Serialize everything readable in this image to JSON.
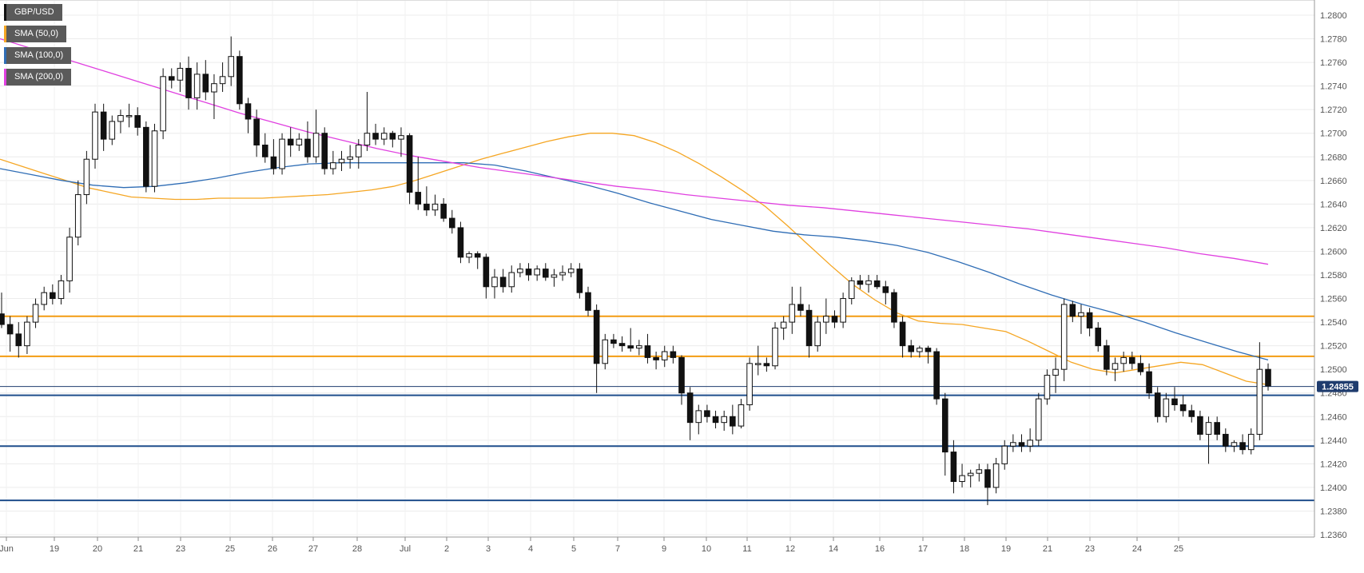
{
  "legend": [
    {
      "label": "GBP/USD",
      "color": "#111111"
    },
    {
      "label": "SMA (50,0)",
      "color": "#f5a623"
    },
    {
      "label": "SMA (100,0)",
      "color": "#2f6db5"
    },
    {
      "label": "SMA (200,0)",
      "color": "#e040e0"
    }
  ],
  "price_badge": "1.24855",
  "chart_data": {
    "type": "candlestick",
    "symbol": "GBP/USD",
    "ylim": [
      1.2355,
      1.2805
    ],
    "y_ticks": [
      "1.2800",
      "1.2780",
      "1.2760",
      "1.2740",
      "1.2720",
      "1.2700",
      "1.2680",
      "1.2660",
      "1.2640",
      "1.2620",
      "1.2600",
      "1.2580",
      "1.2560",
      "1.2540",
      "1.2520",
      "1.2500",
      "1.2480",
      "1.2460",
      "1.2440",
      "1.2420",
      "1.2400",
      "1.2380",
      "1.2360"
    ],
    "x_ticks": [
      "Jun",
      "19",
      "20",
      "21",
      "23",
      "25",
      "26",
      "27",
      "28",
      "Jul",
      "2",
      "3",
      "4",
      "5",
      "7",
      "9",
      "10",
      "11",
      "12",
      "14",
      "16",
      "17",
      "18",
      "19",
      "21",
      "23",
      "24",
      "25"
    ],
    "grid": true,
    "colors": {
      "up": "#ffffff",
      "down": "#111111",
      "sma50": "#f5a623",
      "sma100": "#2f6db5",
      "sma200": "#e040e0",
      "resistance": "#f39c12",
      "support": "#1f4e8c",
      "price_line": "#1f3c6e"
    },
    "horizontal_levels": {
      "resistance": [
        1.2545,
        1.2511
      ],
      "support": [
        1.2478,
        1.2435,
        1.2389
      ]
    },
    "last_price": 1.24855,
    "sma50": [
      1.2678,
      1.2672,
      1.2666,
      1.266,
      1.2654,
      1.265,
      1.2646,
      1.2645,
      1.2644,
      1.2644,
      1.2645,
      1.2645,
      1.2645,
      1.2646,
      1.2647,
      1.2648,
      1.265,
      1.2652,
      1.2655,
      1.266,
      1.2666,
      1.2672,
      1.2678,
      1.2683,
      1.2688,
      1.2693,
      1.2697,
      1.27,
      1.27,
      1.2698,
      1.2692,
      1.2684,
      1.2674,
      1.2663,
      1.2651,
      1.2638,
      1.2622,
      1.2605,
      1.2588,
      1.2572,
      1.2559,
      1.2548,
      1.2541,
      1.2539,
      1.2538,
      1.2535,
      1.2532,
      1.2524,
      1.2515,
      1.2506,
      1.25,
      1.2497,
      1.25,
      1.2503,
      1.2506,
      1.2504,
      1.2497,
      1.249,
      1.2487
    ],
    "sma100": [
      1.267,
      1.2665,
      1.266,
      1.2656,
      1.2654,
      1.2655,
      1.2658,
      1.2662,
      1.2667,
      1.2671,
      1.2674,
      1.2675,
      1.2675,
      1.2675,
      1.2675,
      1.2675,
      1.2673,
      1.2668,
      1.2662,
      1.2656,
      1.2649,
      1.2641,
      1.2634,
      1.2627,
      1.2622,
      1.2617,
      1.2614,
      1.2612,
      1.2609,
      1.2605,
      1.2599,
      1.2591,
      1.2582,
      1.2572,
      1.2563,
      1.2555,
      1.2548,
      1.254,
      1.2531,
      1.2523,
      1.2515,
      1.2508
    ],
    "sma200": [
      1.278,
      1.2771,
      1.2762,
      1.2753,
      1.2744,
      1.2735,
      1.2726,
      1.2717,
      1.2709,
      1.2701,
      1.2694,
      1.2687,
      1.2681,
      1.2676,
      1.2671,
      1.2667,
      1.2663,
      1.2659,
      1.2655,
      1.2652,
      1.2648,
      1.2645,
      1.2642,
      1.2639,
      1.2637,
      1.2634,
      1.2631,
      1.2628,
      1.2625,
      1.2622,
      1.2619,
      1.2615,
      1.2611,
      1.2607,
      1.2603,
      1.2598,
      1.2594,
      1.2589
    ],
    "candles": [
      [
        1.2547,
        1.2565,
        1.2535,
        1.2538
      ],
      [
        1.2538,
        1.2545,
        1.2515,
        1.253
      ],
      [
        1.253,
        1.254,
        1.251,
        1.252
      ],
      [
        1.252,
        1.2545,
        1.2513,
        1.254
      ],
      [
        1.254,
        1.256,
        1.2535,
        1.2555
      ],
      [
        1.2555,
        1.257,
        1.255,
        1.2565
      ],
      [
        1.2565,
        1.2572,
        1.2555,
        1.256
      ],
      [
        1.256,
        1.258,
        1.2555,
        1.2575
      ],
      [
        1.2575,
        1.262,
        1.2565,
        1.2612
      ],
      [
        1.2612,
        1.266,
        1.2605,
        1.2648
      ],
      [
        1.2648,
        1.2685,
        1.264,
        1.2678
      ],
      [
        1.2678,
        1.2725,
        1.267,
        1.2718
      ],
      [
        1.2718,
        1.2725,
        1.2685,
        1.2695
      ],
      [
        1.2695,
        1.2715,
        1.269,
        1.271
      ],
      [
        1.271,
        1.272,
        1.27,
        1.2715
      ],
      [
        1.2715,
        1.2725,
        1.2705,
        1.2715
      ],
      [
        1.2715,
        1.2722,
        1.2698,
        1.2705
      ],
      [
        1.2705,
        1.271,
        1.265,
        1.2655
      ],
      [
        1.2655,
        1.2708,
        1.265,
        1.2702
      ],
      [
        1.2702,
        1.2755,
        1.2695,
        1.2748
      ],
      [
        1.2748,
        1.2755,
        1.2738,
        1.2745
      ],
      [
        1.2745,
        1.276,
        1.2735,
        1.2755
      ],
      [
        1.2755,
        1.2765,
        1.272,
        1.273
      ],
      [
        1.273,
        1.276,
        1.272,
        1.275
      ],
      [
        1.275,
        1.2762,
        1.2728,
        1.2735
      ],
      [
        1.2735,
        1.275,
        1.2712,
        1.2742
      ],
      [
        1.2742,
        1.276,
        1.2735,
        1.2748
      ],
      [
        1.2748,
        1.2782,
        1.274,
        1.2765
      ],
      [
        1.2765,
        1.277,
        1.272,
        1.2725
      ],
      [
        1.2725,
        1.273,
        1.27,
        1.2712
      ],
      [
        1.2712,
        1.272,
        1.268,
        1.269
      ],
      [
        1.269,
        1.27,
        1.2675,
        1.268
      ],
      [
        1.268,
        1.2695,
        1.2665,
        1.267
      ],
      [
        1.267,
        1.27,
        1.2665,
        1.2695
      ],
      [
        1.2695,
        1.2705,
        1.268,
        1.269
      ],
      [
        1.269,
        1.27,
        1.2685,
        1.2695
      ],
      [
        1.2695,
        1.271,
        1.2675,
        1.268
      ],
      [
        1.268,
        1.272,
        1.2675,
        1.27
      ],
      [
        1.27,
        1.2705,
        1.2665,
        1.267
      ],
      [
        1.267,
        1.2685,
        1.2665,
        1.2675
      ],
      [
        1.2675,
        1.2685,
        1.2668,
        1.2678
      ],
      [
        1.2678,
        1.269,
        1.267,
        1.268
      ],
      [
        1.268,
        1.2695,
        1.267,
        1.269
      ],
      [
        1.269,
        1.2735,
        1.2685,
        1.27
      ],
      [
        1.27,
        1.2708,
        1.269,
        1.2695
      ],
      [
        1.2695,
        1.2705,
        1.269,
        1.27
      ],
      [
        1.27,
        1.2702,
        1.2688,
        1.2695
      ],
      [
        1.2695,
        1.2705,
        1.268,
        1.2698
      ],
      [
        1.2698,
        1.27,
        1.264,
        1.265
      ],
      [
        1.265,
        1.268,
        1.2635,
        1.264
      ],
      [
        1.264,
        1.2655,
        1.263,
        1.2635
      ],
      [
        1.2635,
        1.2648,
        1.263,
        1.264
      ],
      [
        1.264,
        1.2645,
        1.2625,
        1.2628
      ],
      [
        1.2628,
        1.2635,
        1.2615,
        1.262
      ],
      [
        1.262,
        1.2625,
        1.259,
        1.2595
      ],
      [
        1.2595,
        1.26,
        1.259,
        1.2598
      ],
      [
        1.2598,
        1.26,
        1.2585,
        1.2595
      ],
      [
        1.2595,
        1.2598,
        1.256,
        1.257
      ],
      [
        1.257,
        1.2585,
        1.256,
        1.2578
      ],
      [
        1.2578,
        1.2585,
        1.2565,
        1.257
      ],
      [
        1.257,
        1.2588,
        1.2565,
        1.2582
      ],
      [
        1.2582,
        1.259,
        1.2578,
        1.2585
      ],
      [
        1.2585,
        1.259,
        1.2575,
        1.258
      ],
      [
        1.258,
        1.2588,
        1.2575,
        1.2585
      ],
      [
        1.2585,
        1.259,
        1.2575,
        1.2578
      ],
      [
        1.2578,
        1.2585,
        1.257,
        1.258
      ],
      [
        1.258,
        1.2588,
        1.2575,
        1.2582
      ],
      [
        1.2582,
        1.259,
        1.2578,
        1.2585
      ],
      [
        1.2585,
        1.259,
        1.256,
        1.2565
      ],
      [
        1.2565,
        1.257,
        1.2545,
        1.255
      ],
      [
        1.255,
        1.2555,
        1.248,
        1.2505
      ],
      [
        1.2505,
        1.253,
        1.25,
        1.2525
      ],
      [
        1.2525,
        1.253,
        1.2518,
        1.2522
      ],
      [
        1.2522,
        1.2528,
        1.2515,
        1.252
      ],
      [
        1.252,
        1.2535,
        1.2515,
        1.2518
      ],
      [
        1.2518,
        1.2525,
        1.2512,
        1.252
      ],
      [
        1.252,
        1.253,
        1.2505,
        1.251
      ],
      [
        1.251,
        1.2515,
        1.25,
        1.2508
      ],
      [
        1.2508,
        1.252,
        1.2502,
        1.2515
      ],
      [
        1.2515,
        1.252,
        1.2505,
        1.251
      ],
      [
        1.251,
        1.2512,
        1.247,
        1.248
      ],
      [
        1.248,
        1.2485,
        1.244,
        1.2455
      ],
      [
        1.2455,
        1.247,
        1.2445,
        1.2465
      ],
      [
        1.2465,
        1.247,
        1.2455,
        1.246
      ],
      [
        1.246,
        1.2465,
        1.245,
        1.2455
      ],
      [
        1.2455,
        1.2465,
        1.2448,
        1.246
      ],
      [
        1.246,
        1.247,
        1.2445,
        1.2452
      ],
      [
        1.2452,
        1.2475,
        1.245,
        1.247
      ],
      [
        1.247,
        1.251,
        1.2465,
        1.2505
      ],
      [
        1.2505,
        1.252,
        1.2495,
        1.2505
      ],
      [
        1.2505,
        1.251,
        1.2498,
        1.2503
      ],
      [
        1.2503,
        1.254,
        1.25,
        1.2535
      ],
      [
        1.2535,
        1.2545,
        1.2525,
        1.254
      ],
      [
        1.254,
        1.257,
        1.253,
        1.2555
      ],
      [
        1.2555,
        1.257,
        1.2545,
        1.255
      ],
      [
        1.255,
        1.2555,
        1.251,
        1.252
      ],
      [
        1.252,
        1.2545,
        1.2515,
        1.254
      ],
      [
        1.254,
        1.256,
        1.253,
        1.2545
      ],
      [
        1.2545,
        1.255,
        1.2535,
        1.254
      ],
      [
        1.254,
        1.2565,
        1.2535,
        1.256
      ],
      [
        1.256,
        1.2578,
        1.2555,
        1.2575
      ],
      [
        1.2575,
        1.258,
        1.2568,
        1.2572
      ],
      [
        1.2572,
        1.258,
        1.2565,
        1.2575
      ],
      [
        1.2575,
        1.258,
        1.2568,
        1.257
      ],
      [
        1.257,
        1.2575,
        1.2555,
        1.2565
      ],
      [
        1.2565,
        1.2568,
        1.2535,
        1.254
      ],
      [
        1.254,
        1.2545,
        1.251,
        1.252
      ],
      [
        1.252,
        1.2525,
        1.251,
        1.2515
      ],
      [
        1.2515,
        1.252,
        1.251,
        1.2518
      ],
      [
        1.2518,
        1.252,
        1.2505,
        1.2515
      ],
      [
        1.2515,
        1.2518,
        1.247,
        1.2475
      ],
      [
        1.2475,
        1.248,
        1.241,
        1.243
      ],
      [
        1.243,
        1.244,
        1.2395,
        1.2405
      ],
      [
        1.2405,
        1.242,
        1.24,
        1.241
      ],
      [
        1.241,
        1.2415,
        1.24,
        1.2412
      ],
      [
        1.2412,
        1.242,
        1.2405,
        1.2415
      ],
      [
        1.2415,
        1.242,
        1.2385,
        1.24
      ],
      [
        1.24,
        1.2425,
        1.2395,
        1.242
      ],
      [
        1.242,
        1.244,
        1.2415,
        1.2435
      ],
      [
        1.2435,
        1.2445,
        1.243,
        1.2438
      ],
      [
        1.2438,
        1.2445,
        1.243,
        1.2435
      ],
      [
        1.2435,
        1.245,
        1.243,
        1.244
      ],
      [
        1.244,
        1.248,
        1.2435,
        1.2475
      ],
      [
        1.2475,
        1.25,
        1.247,
        1.2495
      ],
      [
        1.2495,
        1.251,
        1.248,
        1.25
      ],
      [
        1.25,
        1.256,
        1.249,
        1.2555
      ],
      [
        1.2555,
        1.2558,
        1.254,
        1.2545
      ],
      [
        1.2545,
        1.2555,
        1.253,
        1.2548
      ],
      [
        1.2548,
        1.2552,
        1.2528,
        1.2535
      ],
      [
        1.2535,
        1.254,
        1.2515,
        1.252
      ],
      [
        1.252,
        1.2525,
        1.2495,
        1.25
      ],
      [
        1.25,
        1.251,
        1.249,
        1.2505
      ],
      [
        1.2505,
        1.2515,
        1.2498,
        1.251
      ],
      [
        1.251,
        1.2515,
        1.25,
        1.2505
      ],
      [
        1.2505,
        1.2512,
        1.2495,
        1.2498
      ],
      [
        1.2498,
        1.2505,
        1.2475,
        1.248
      ],
      [
        1.248,
        1.2485,
        1.2455,
        1.246
      ],
      [
        1.246,
        1.248,
        1.2455,
        1.2475
      ],
      [
        1.2475,
        1.2485,
        1.2465,
        1.247
      ],
      [
        1.247,
        1.2478,
        1.246,
        1.2465
      ],
      [
        1.2465,
        1.247,
        1.2455,
        1.246
      ],
      [
        1.246,
        1.2465,
        1.244,
        1.2445
      ],
      [
        1.2445,
        1.246,
        1.242,
        1.2455
      ],
      [
        1.2455,
        1.246,
        1.244,
        1.2445
      ],
      [
        1.2445,
        1.245,
        1.243,
        1.2435
      ],
      [
        1.2435,
        1.244,
        1.243,
        1.2438
      ],
      [
        1.2438,
        1.2445,
        1.2428,
        1.2432
      ],
      [
        1.2432,
        1.245,
        1.2428,
        1.2445
      ],
      [
        1.2445,
        1.2523,
        1.244,
        1.25
      ],
      [
        1.25,
        1.2505,
        1.2482,
        1.2486
      ]
    ]
  }
}
